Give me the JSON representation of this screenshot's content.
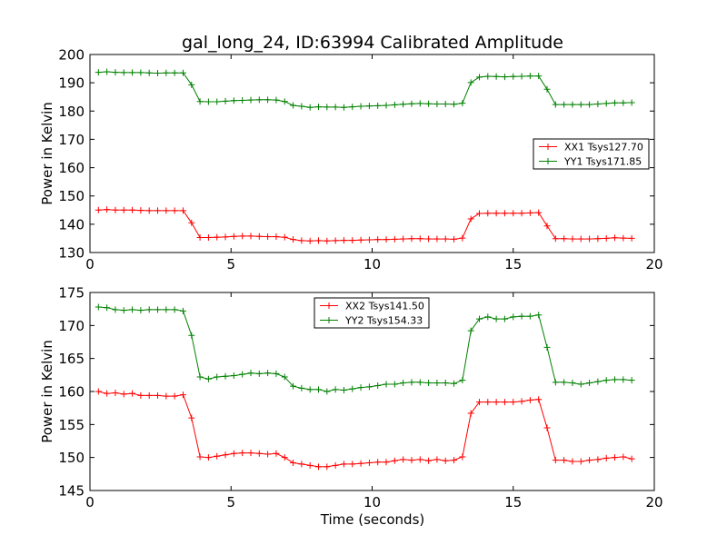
{
  "chart_data": [
    {
      "type": "line",
      "title": "gal_long_24, ID:63994 Calibrated Amplitude",
      "xlabel": "",
      "ylabel": "Power in Kelvin",
      "xlim": [
        0,
        20
      ],
      "ylim": [
        130,
        200
      ],
      "xticks": [
        0,
        5,
        10,
        15,
        20
      ],
      "yticks": [
        130,
        140,
        150,
        160,
        170,
        180,
        190,
        200
      ],
      "grid": false,
      "legend_position": "center-right",
      "x": [
        0.3,
        0.6,
        0.9,
        1.2,
        1.5,
        1.8,
        2.1,
        2.4,
        2.7,
        3.0,
        3.3,
        3.6,
        3.9,
        4.2,
        4.5,
        4.8,
        5.1,
        5.4,
        5.7,
        6.0,
        6.3,
        6.6,
        6.9,
        7.2,
        7.5,
        7.8,
        8.1,
        8.4,
        8.7,
        9.0,
        9.3,
        9.6,
        9.9,
        10.2,
        10.5,
        10.8,
        11.1,
        11.4,
        11.7,
        12.0,
        12.3,
        12.6,
        12.9,
        13.2,
        13.5,
        13.8,
        14.1,
        14.4,
        14.7,
        15.0,
        15.3,
        15.6,
        15.9,
        16.2,
        16.5,
        16.8,
        17.1,
        17.4,
        17.7,
        18.0,
        18.3,
        18.6,
        18.9,
        19.2
      ],
      "series": [
        {
          "name": "XX1 Tsys127.70",
          "color": "#ff0000",
          "values": [
            145.0,
            145.2,
            145.0,
            145.0,
            145.0,
            144.9,
            144.8,
            144.8,
            144.8,
            144.8,
            144.8,
            140.5,
            135.3,
            135.3,
            135.4,
            135.5,
            135.7,
            135.8,
            135.8,
            135.7,
            135.6,
            135.6,
            135.4,
            134.6,
            134.2,
            134.1,
            134.2,
            134.1,
            134.2,
            134.3,
            134.3,
            134.4,
            134.5,
            134.6,
            134.6,
            134.7,
            134.8,
            134.9,
            134.9,
            134.8,
            134.8,
            134.8,
            134.7,
            135.1,
            141.9,
            143.8,
            143.9,
            143.9,
            143.9,
            143.9,
            143.9,
            144.0,
            144.1,
            139.4,
            134.9,
            134.9,
            134.8,
            134.8,
            134.8,
            134.9,
            135.0,
            135.2,
            135.1,
            135.0
          ]
        },
        {
          "name": "YY1 Tsys171.85",
          "color": "#008000",
          "values": [
            193.7,
            193.9,
            193.7,
            193.6,
            193.6,
            193.6,
            193.5,
            193.4,
            193.5,
            193.5,
            193.5,
            189.3,
            183.4,
            183.3,
            183.3,
            183.5,
            183.7,
            183.8,
            183.9,
            184.0,
            184.0,
            183.9,
            183.4,
            182.0,
            181.7,
            181.3,
            181.5,
            181.4,
            181.4,
            181.3,
            181.5,
            181.7,
            181.8,
            181.9,
            182.0,
            182.2,
            182.4,
            182.6,
            182.7,
            182.6,
            182.5,
            182.5,
            182.4,
            182.8,
            190.1,
            192.0,
            192.3,
            192.2,
            192.1,
            192.2,
            192.3,
            192.4,
            192.4,
            187.7,
            182.3,
            182.3,
            182.3,
            182.3,
            182.3,
            182.5,
            182.7,
            182.9,
            182.9,
            183.0
          ]
        }
      ]
    },
    {
      "type": "line",
      "title": "",
      "xlabel": "Time (seconds)",
      "ylabel": "Power in Kelvin",
      "xlim": [
        0,
        20
      ],
      "ylim": [
        145,
        175
      ],
      "xticks": [
        0,
        5,
        10,
        15,
        20
      ],
      "yticks": [
        145,
        150,
        155,
        160,
        165,
        170,
        175
      ],
      "grid": false,
      "legend_position": "upper-center",
      "x": [
        0.3,
        0.6,
        0.9,
        1.2,
        1.5,
        1.8,
        2.1,
        2.4,
        2.7,
        3.0,
        3.3,
        3.6,
        3.9,
        4.2,
        4.5,
        4.8,
        5.1,
        5.4,
        5.7,
        6.0,
        6.3,
        6.6,
        6.9,
        7.2,
        7.5,
        7.8,
        8.1,
        8.4,
        8.7,
        9.0,
        9.3,
        9.6,
        9.9,
        10.2,
        10.5,
        10.8,
        11.1,
        11.4,
        11.7,
        12.0,
        12.3,
        12.6,
        12.9,
        13.2,
        13.5,
        13.8,
        14.1,
        14.4,
        14.7,
        15.0,
        15.3,
        15.6,
        15.9,
        16.2,
        16.5,
        16.8,
        17.1,
        17.4,
        17.7,
        18.0,
        18.3,
        18.6,
        18.9,
        19.2
      ],
      "series": [
        {
          "name": "XX2 Tsys141.50",
          "color": "#ff0000",
          "values": [
            160.0,
            159.7,
            159.8,
            159.6,
            159.7,
            159.4,
            159.4,
            159.4,
            159.3,
            159.3,
            159.5,
            156.0,
            150.1,
            150.0,
            150.2,
            150.4,
            150.6,
            150.7,
            150.7,
            150.6,
            150.5,
            150.6,
            150.0,
            149.2,
            149.0,
            148.8,
            148.6,
            148.6,
            148.8,
            149.0,
            149.0,
            149.1,
            149.2,
            149.3,
            149.3,
            149.5,
            149.7,
            149.6,
            149.7,
            149.5,
            149.7,
            149.5,
            149.6,
            150.1,
            156.7,
            158.4,
            158.4,
            158.4,
            158.4,
            158.4,
            158.5,
            158.7,
            158.8,
            154.5,
            149.6,
            149.6,
            149.4,
            149.4,
            149.6,
            149.7,
            149.9,
            150.0,
            150.1,
            149.8
          ]
        },
        {
          "name": "YY2 Tsys154.33",
          "color": "#008000",
          "values": [
            172.8,
            172.7,
            172.4,
            172.3,
            172.4,
            172.3,
            172.4,
            172.4,
            172.4,
            172.4,
            172.2,
            168.5,
            162.2,
            161.9,
            162.2,
            162.3,
            162.4,
            162.6,
            162.8,
            162.7,
            162.8,
            162.7,
            162.2,
            160.8,
            160.5,
            160.3,
            160.3,
            160.0,
            160.3,
            160.2,
            160.4,
            160.6,
            160.7,
            160.9,
            161.1,
            161.1,
            161.3,
            161.4,
            161.4,
            161.3,
            161.3,
            161.3,
            161.2,
            161.7,
            169.2,
            171.0,
            171.3,
            171.0,
            171.0,
            171.3,
            171.4,
            171.4,
            171.6,
            166.7,
            161.4,
            161.4,
            161.3,
            161.1,
            161.3,
            161.5,
            161.7,
            161.8,
            161.8,
            161.7
          ]
        }
      ]
    }
  ]
}
